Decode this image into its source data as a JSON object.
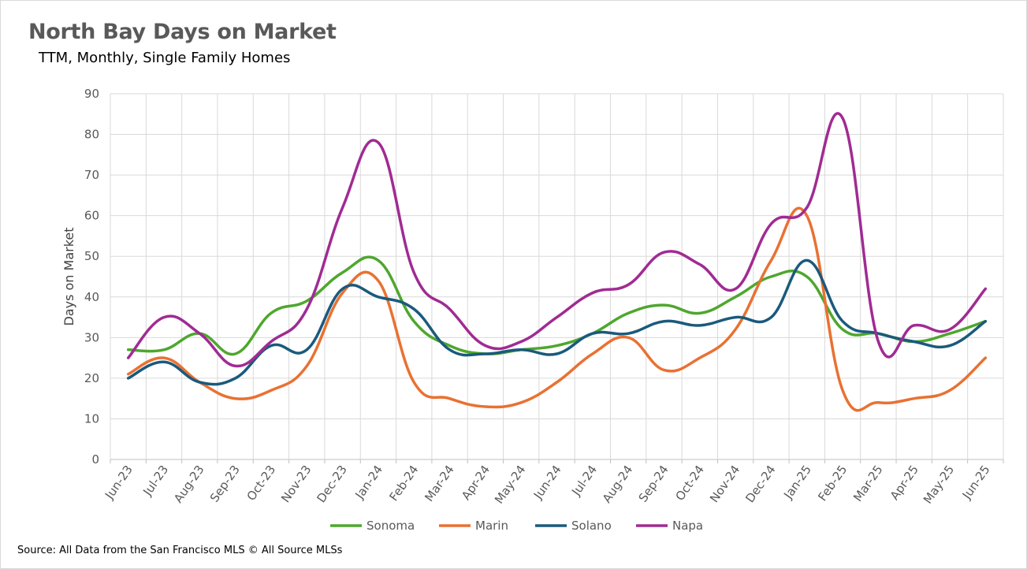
{
  "title": "North Bay Days on Market",
  "subtitle": "TTM, Monthly, Single Family Homes",
  "source": "Source: All Data from the San Francisco MLS © All Source MLSs",
  "chart_data": {
    "type": "line",
    "title": "North Bay Days on Market",
    "subtitle": "TTM, Monthly, Single Family Homes",
    "xlabel": "",
    "ylabel": "Days on Market",
    "ylim": [
      0,
      90
    ],
    "yticks": [
      0,
      10,
      20,
      30,
      40,
      50,
      60,
      70,
      80,
      90
    ],
    "grid": true,
    "legend_position": "bottom",
    "smooth": true,
    "categories": [
      "Jun-23",
      "Jul-23",
      "Aug-23",
      "Sep-23",
      "Oct-23",
      "Nov-23",
      "Dec-23",
      "Jan-24",
      "Feb-24",
      "Mar-24",
      "Apr-24",
      "May-24",
      "Jun-24",
      "Jul-24",
      "Aug-24",
      "Sep-24",
      "Oct-24",
      "Nov-24",
      "Dec-24",
      "Jan-25",
      "Feb-25",
      "Mar-25",
      "Apr-25",
      "May-25",
      "Jun-25"
    ],
    "series": [
      {
        "name": "Sonoma",
        "color": "#4ea72e",
        "values": [
          27,
          27,
          31,
          26,
          36,
          39,
          46,
          49,
          34,
          28,
          26,
          27,
          28,
          31,
          36,
          38,
          36,
          40,
          45,
          45,
          32,
          31,
          29,
          31,
          34
        ]
      },
      {
        "name": "Marin",
        "color": "#e97132",
        "values": [
          21,
          25,
          19,
          15,
          17,
          23,
          41,
          44,
          19,
          15,
          13,
          14,
          19,
          26,
          30,
          22,
          25,
          32,
          49,
          60,
          17,
          14,
          15,
          17,
          25
        ]
      },
      {
        "name": "Solano",
        "color": "#1a5a7c",
        "values": [
          20,
          24,
          19,
          20,
          28,
          27,
          42,
          40,
          37,
          27,
          26,
          27,
          26,
          31,
          31,
          34,
          33,
          35,
          35,
          49,
          34,
          31,
          29,
          28,
          34
        ]
      },
      {
        "name": "Napa",
        "color": "#a02b93",
        "values": [
          25,
          35,
          31,
          23,
          29,
          37,
          62,
          78,
          46,
          37,
          28,
          29,
          35,
          41,
          43,
          51,
          48,
          42,
          58,
          62,
          84,
          29,
          33,
          32,
          42
        ]
      }
    ]
  }
}
